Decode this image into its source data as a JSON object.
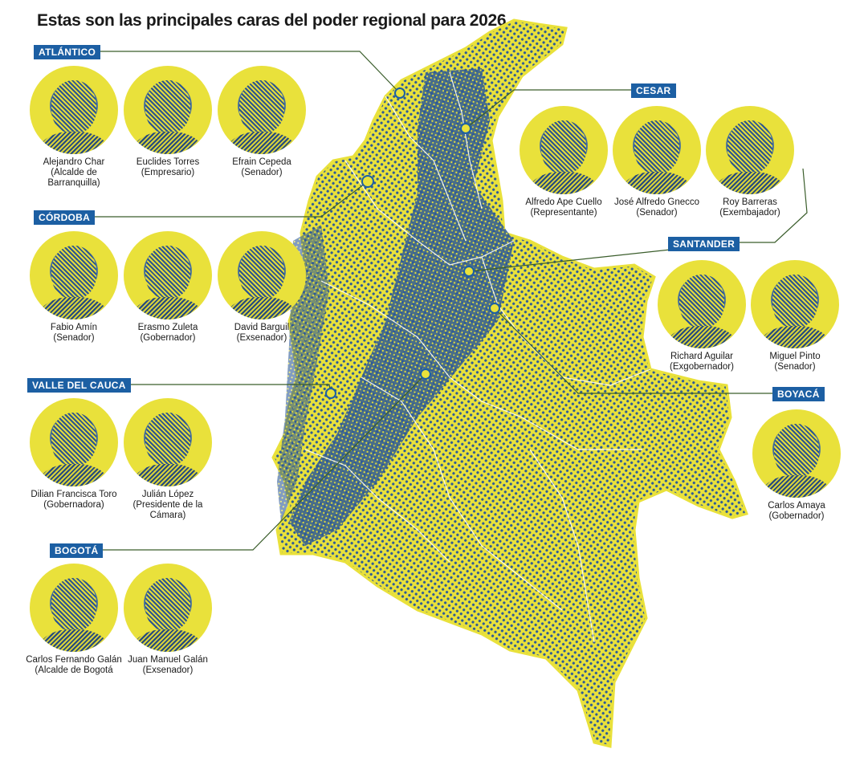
{
  "title": "Estas son las principales caras del poder regional para 2026",
  "colors": {
    "accent": "#1c5fa3",
    "map_yellow": "#e9e13b",
    "map_blue": "#2d5a97",
    "connector": "#3a5d2b"
  },
  "regions": [
    {
      "label": "ATLÁNTICO",
      "people": [
        {
          "name": "Alejandro Char",
          "role": "(Alcalde de Barranquilla)"
        },
        {
          "name": "Euclides Torres",
          "role": "(Empresario)"
        },
        {
          "name": "Efrain Cepeda",
          "role": "(Senador)"
        }
      ]
    },
    {
      "label": "CESAR",
      "people": [
        {
          "name": "Alfredo Ape Cuello",
          "role": "(Representante)"
        },
        {
          "name": "José Alfredo Gnecco",
          "role": "(Senador)"
        },
        {
          "name": "Roy Barreras",
          "role": "(Exembajador)"
        }
      ]
    },
    {
      "label": "CÓRDOBA",
      "people": [
        {
          "name": "Fabio Amín",
          "role": "(Senador)"
        },
        {
          "name": "Erasmo Zuleta",
          "role": "(Gobernador)"
        },
        {
          "name": "David Barguil",
          "role": "(Exsenador)"
        }
      ]
    },
    {
      "label": "SANTANDER",
      "people": [
        {
          "name": "Richard Aguilar",
          "role": "(Exgobernador)"
        },
        {
          "name": "Miguel Pinto",
          "role": "(Senador)"
        }
      ]
    },
    {
      "label": "VALLE DEL CAUCA",
      "people": [
        {
          "name": "Dilian Francisca Toro",
          "role": "(Gobernadora)"
        },
        {
          "name": "Julián López",
          "role": "(Presidente de la Cámara)"
        }
      ]
    },
    {
      "label": "BOYACÁ",
      "people": [
        {
          "name": "Carlos Amaya",
          "role": "(Gobernador)"
        }
      ]
    },
    {
      "label": "BOGOTÁ",
      "people": [
        {
          "name": "Carlos Fernando Galán",
          "role": "(Alcalde de Bogotá"
        },
        {
          "name": "Juan Manuel Galán",
          "role": "(Exsenador)"
        }
      ]
    }
  ]
}
